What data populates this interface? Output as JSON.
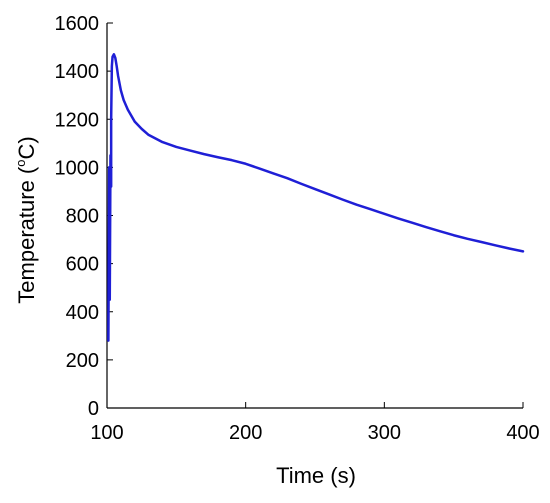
{
  "chart_data": {
    "type": "line",
    "title": "",
    "xlabel": "Time (s)",
    "ylabel_prefix": "Temperature (",
    "ylabel_sup": "o",
    "ylabel_suffix": "C)",
    "xlim": [
      100,
      400
    ],
    "ylim": [
      0,
      1600
    ],
    "xticks": [
      100,
      200,
      300,
      400
    ],
    "yticks": [
      0,
      200,
      400,
      600,
      800,
      1000,
      1200,
      1400,
      1600
    ],
    "grid": false,
    "legend": "none",
    "series": [
      {
        "color": "#1f1fd6",
        "x": [
          101,
          101.5,
          102,
          102.5,
          103,
          103,
          103.5,
          104,
          105,
          106,
          107,
          108,
          110,
          112,
          115,
          120,
          125,
          130,
          140,
          150,
          160,
          170,
          180,
          190,
          200,
          210,
          220,
          230,
          240,
          250,
          260,
          270,
          280,
          290,
          300,
          310,
          320,
          330,
          340,
          350,
          360,
          370,
          380,
          390,
          400
        ],
        "y": [
          280,
          1000,
          450,
          1050,
          920,
          1200,
          1420,
          1460,
          1470,
          1455,
          1420,
          1380,
          1320,
          1280,
          1240,
          1190,
          1160,
          1135,
          1105,
          1085,
          1070,
          1055,
          1042,
          1030,
          1015,
          995,
          975,
          955,
          932,
          910,
          888,
          866,
          845,
          826,
          807,
          788,
          770,
          752,
          735,
          718,
          703,
          690,
          676,
          663,
          651
        ]
      }
    ]
  }
}
